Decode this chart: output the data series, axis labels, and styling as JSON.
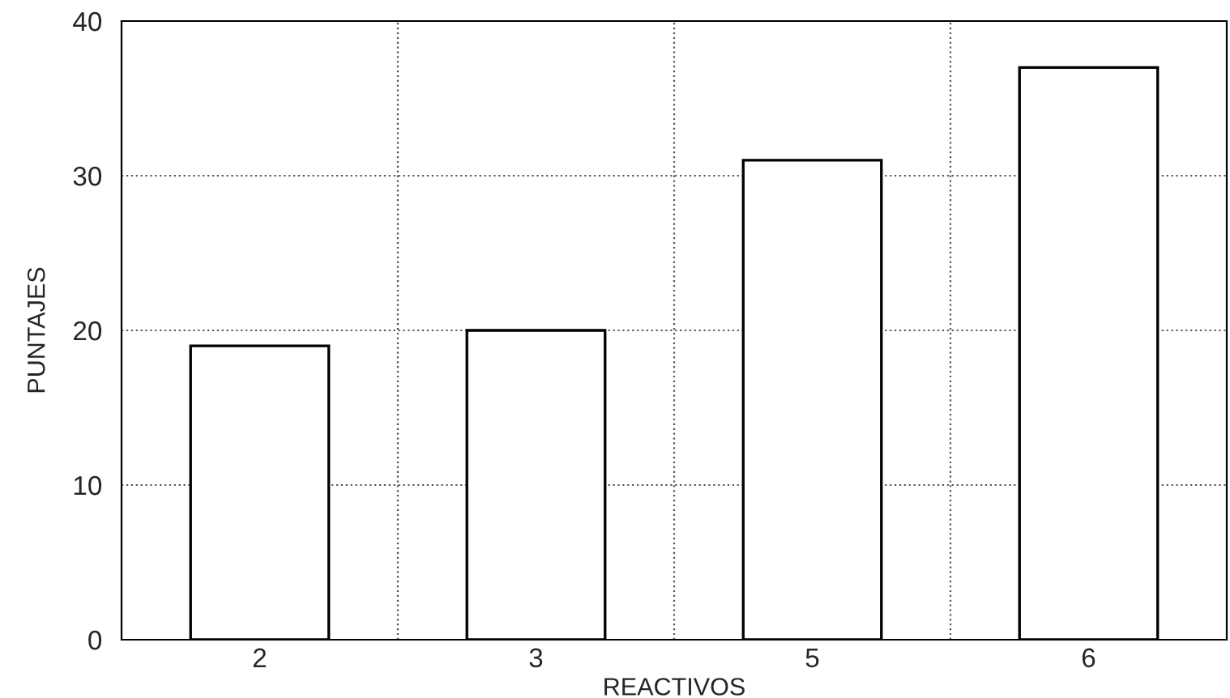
{
  "chart_data": {
    "type": "bar",
    "xlabel": "REACTIVOS",
    "ylabel": "PUNTAJES",
    "categories": [
      "2",
      "3",
      "5",
      "6"
    ],
    "values": [
      19,
      20,
      31,
      37
    ],
    "color": "#ffffff",
    "ylim": [
      0,
      40
    ],
    "yticks": [
      0,
      10,
      20,
      30,
      40
    ],
    "grid": true
  }
}
